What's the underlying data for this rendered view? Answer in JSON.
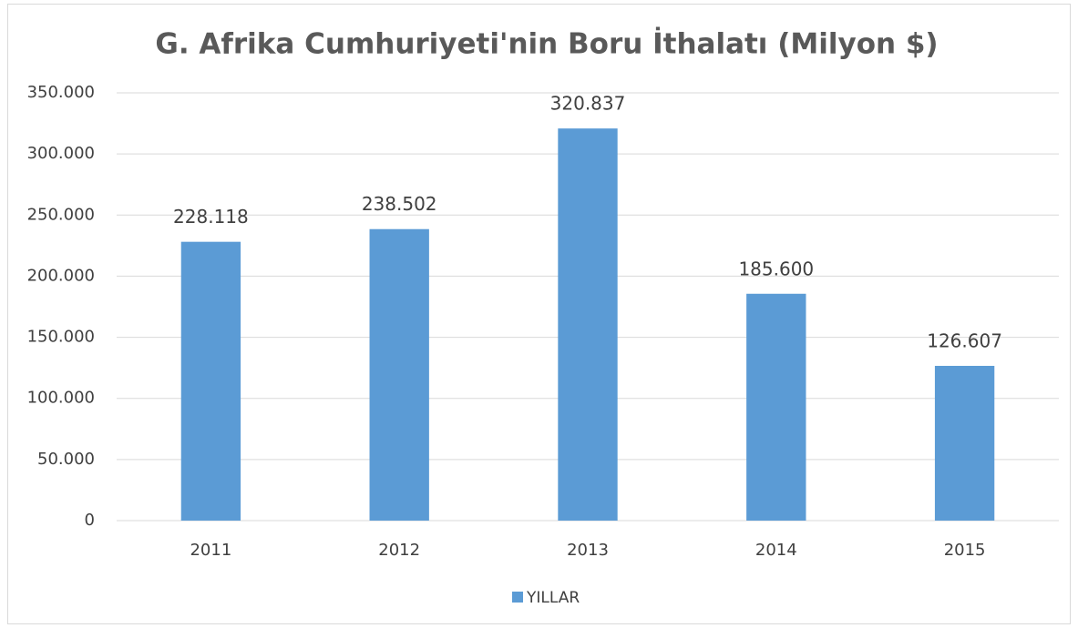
{
  "chart_data": {
    "type": "bar",
    "title": "G. Afrika Cumhuriyeti'nin Boru İthalatı (Milyon $)",
    "categories": [
      "2011",
      "2012",
      "2013",
      "2014",
      "2015"
    ],
    "series": [
      {
        "name": "YILLAR",
        "color": "#5b9bd5",
        "values": [
          228118,
          238502,
          320837,
          185600,
          126607
        ],
        "value_labels": [
          "228.118",
          "238.502",
          "320.837",
          "185.600",
          "126.607"
        ]
      }
    ],
    "ylim": [
      0,
      350000
    ],
    "yticks": [
      0,
      {
        "value": 50000,
        "label": "50.000"
      },
      {
        "value": 100000,
        "label": "100.000"
      },
      {
        "value": 150000,
        "label": "150.000"
      },
      {
        "value": 200000,
        "label": "200.000"
      },
      {
        "value": 250000,
        "label": "250.000"
      },
      {
        "value": 300000,
        "label": "300.000"
      },
      {
        "value": 350000,
        "label": "350.000"
      }
    ],
    "grid": true,
    "legend": "bottom"
  }
}
